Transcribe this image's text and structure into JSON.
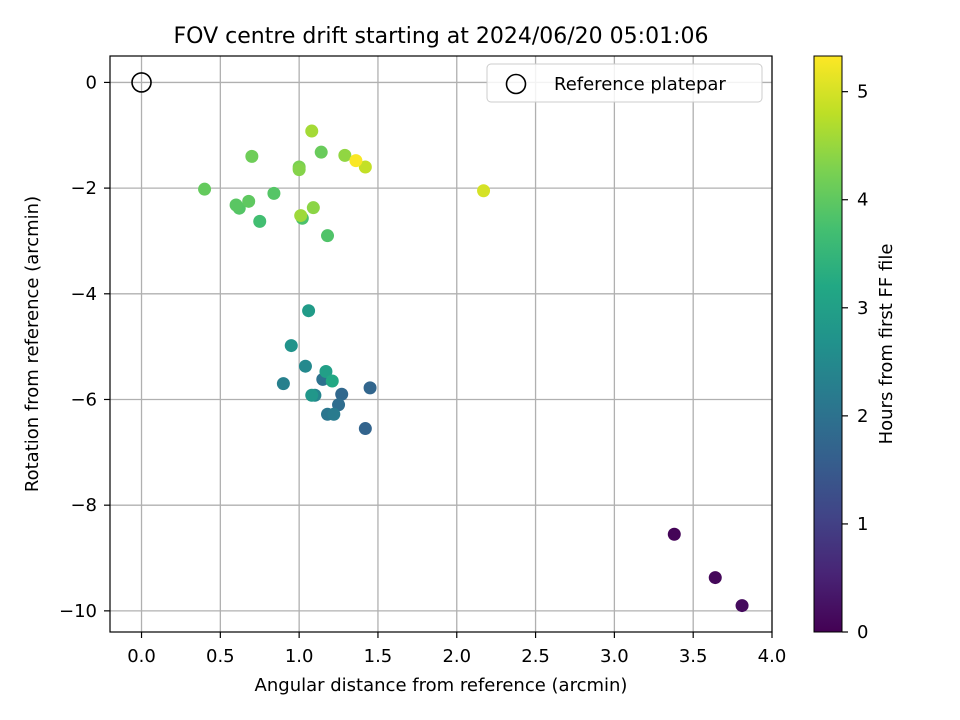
{
  "chart_data": {
    "type": "scatter",
    "title": "FOV centre drift starting at 2024/06/20 05:01:06",
    "xlabel": "Angular distance from reference (arcmin)",
    "ylabel": "Rotation from reference (arcmin)",
    "xlim": [
      -0.2,
      4.0
    ],
    "ylim": [
      -10.4,
      0.5
    ],
    "xticks": [
      0.0,
      0.5,
      1.0,
      1.5,
      2.0,
      2.5,
      3.0,
      3.5,
      4.0
    ],
    "xtick_labels": [
      "0.0",
      "0.5",
      "1.0",
      "1.5",
      "2.0",
      "2.5",
      "3.0",
      "3.5",
      "4.0"
    ],
    "yticks": [
      0,
      -2,
      -4,
      -6,
      -8,
      -10
    ],
    "ytick_labels": [
      "0",
      "−2",
      "−4",
      "−6",
      "−8",
      "−10"
    ],
    "grid": true,
    "legend": {
      "placement": "upper right",
      "label": "Reference platepar"
    },
    "reference_point": {
      "x": 0.0,
      "y": 0.0
    },
    "colorbar": {
      "label": "Hours from first FF file",
      "range": [
        0,
        5.33
      ],
      "ticks": [
        0,
        1,
        2,
        3,
        4,
        5
      ],
      "tick_labels": [
        "0",
        "1",
        "2",
        "3",
        "4",
        "5"
      ],
      "colormap": "viridis"
    },
    "points": [
      {
        "x": 3.38,
        "y": -8.55,
        "hours": 0.05
      },
      {
        "x": 3.64,
        "y": -9.37,
        "hours": 0.1
      },
      {
        "x": 3.81,
        "y": -9.9,
        "hours": 0.15
      },
      {
        "x": 1.42,
        "y": -6.55,
        "hours": 1.7
      },
      {
        "x": 1.45,
        "y": -5.78,
        "hours": 1.75
      },
      {
        "x": 1.27,
        "y": -5.9,
        "hours": 1.8
      },
      {
        "x": 1.25,
        "y": -6.1,
        "hours": 1.9
      },
      {
        "x": 1.15,
        "y": -5.62,
        "hours": 2.0
      },
      {
        "x": 1.18,
        "y": -6.28,
        "hours": 2.1
      },
      {
        "x": 1.22,
        "y": -6.28,
        "hours": 2.2
      },
      {
        "x": 0.9,
        "y": -5.7,
        "hours": 2.3
      },
      {
        "x": 1.1,
        "y": -5.92,
        "hours": 2.4
      },
      {
        "x": 1.04,
        "y": -5.37,
        "hours": 2.5
      },
      {
        "x": 0.95,
        "y": -4.98,
        "hours": 2.7
      },
      {
        "x": 1.08,
        "y": -5.92,
        "hours": 2.8
      },
      {
        "x": 1.06,
        "y": -4.32,
        "hours": 2.9
      },
      {
        "x": 1.17,
        "y": -5.47,
        "hours": 3.0
      },
      {
        "x": 1.21,
        "y": -5.65,
        "hours": 3.2
      },
      {
        "x": 0.75,
        "y": -2.63,
        "hours": 3.7
      },
      {
        "x": 1.02,
        "y": -2.57,
        "hours": 3.8
      },
      {
        "x": 1.18,
        "y": -2.9,
        "hours": 3.85
      },
      {
        "x": 0.62,
        "y": -2.38,
        "hours": 3.9
      },
      {
        "x": 0.84,
        "y": -2.1,
        "hours": 3.9
      },
      {
        "x": 0.6,
        "y": -2.32,
        "hours": 3.95
      },
      {
        "x": 0.68,
        "y": -2.25,
        "hours": 4.0
      },
      {
        "x": 0.4,
        "y": -2.02,
        "hours": 4.05
      },
      {
        "x": 1.14,
        "y": -1.32,
        "hours": 4.1
      },
      {
        "x": 0.7,
        "y": -1.4,
        "hours": 4.15
      },
      {
        "x": 1.0,
        "y": -1.6,
        "hours": 4.25
      },
      {
        "x": 1.0,
        "y": -1.65,
        "hours": 4.35
      },
      {
        "x": 1.09,
        "y": -2.37,
        "hours": 4.4
      },
      {
        "x": 1.01,
        "y": -2.52,
        "hours": 4.55
      },
      {
        "x": 1.29,
        "y": -1.38,
        "hours": 4.45
      },
      {
        "x": 1.08,
        "y": -0.92,
        "hours": 4.6
      },
      {
        "x": 1.42,
        "y": -1.6,
        "hours": 4.85
      },
      {
        "x": 2.17,
        "y": -2.05,
        "hours": 5.0
      },
      {
        "x": 1.36,
        "y": -1.48,
        "hours": 5.3
      }
    ]
  }
}
